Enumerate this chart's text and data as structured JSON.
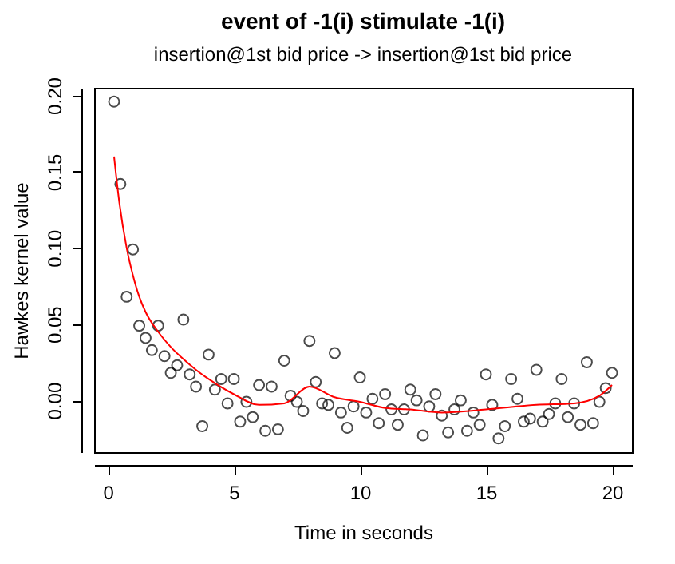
{
  "chart_data": {
    "type": "scatter",
    "title": "event of -1(i) stimulate -1(i)",
    "subtitle": "insertion@1st bid price -> insertion@1st bid price",
    "xlabel": "Time in seconds",
    "ylabel": "Hawkes kernel value",
    "xlim": [
      -0.54,
      20.79
    ],
    "ylim": [
      -0.034,
      0.205
    ],
    "xticks": [
      0,
      5,
      10,
      15,
      20
    ],
    "yticks": [
      {
        "value": 0,
        "label": "0.00"
      },
      0.05,
      {
        "value": 0.1,
        "label": "0.10"
      },
      0.15,
      {
        "value": 0.2,
        "label": "0.20"
      }
    ],
    "grid": false,
    "series": [
      {
        "color": "#000000",
        "marker": "circle",
        "x": [
          0.25,
          0.5,
          0.75,
          1,
          1.25,
          1.5,
          1.75,
          2,
          2.25,
          2.5,
          2.75,
          3,
          3.25,
          3.5,
          3.75,
          4,
          4.25,
          4.5,
          4.75,
          5,
          5.25,
          5.5,
          5.75,
          6,
          6.25,
          6.5,
          6.75,
          7,
          7.25,
          7.5,
          7.75,
          8,
          8.25,
          8.5,
          8.75,
          9,
          9.25,
          9.5,
          9.75,
          10,
          10.25,
          10.5,
          10.75,
          11,
          11.25,
          11.5,
          11.75,
          12,
          12.25,
          12.5,
          12.75,
          13,
          13.25,
          13.5,
          13.75,
          14,
          14.25,
          14.5,
          14.75,
          15,
          15.25,
          15.5,
          15.75,
          16,
          16.25,
          16.5,
          16.75,
          17,
          17.25,
          17.5,
          17.75,
          18,
          18.25,
          18.5,
          18.75,
          19,
          19.25,
          19.5,
          19.75,
          20
        ],
        "values": [
          0.196,
          0.142,
          0.068,
          0.099,
          0.049,
          0.041,
          0.033,
          0.049,
          0.029,
          0.018,
          0.023,
          0.053,
          0.017,
          0.009,
          -0.017,
          0.03,
          0.007,
          0.014,
          -0.002,
          0.014,
          -0.014,
          -0.001,
          -0.011,
          0.01,
          -0.02,
          0.009,
          -0.019,
          0.026,
          0.003,
          -0.001,
          -0.007,
          0.039,
          0.012,
          -0.002,
          -0.003,
          0.031,
          -0.008,
          -0.018,
          -0.004,
          0.015,
          -0.008,
          0.001,
          -0.015,
          0.004,
          -0.006,
          -0.016,
          -0.006,
          0.007,
          0,
          -0.023,
          -0.004,
          0.004,
          -0.01,
          -0.021,
          -0.006,
          0,
          -0.02,
          -0.008,
          -0.016,
          0.017,
          -0.003,
          -0.025,
          -0.017,
          0.014,
          0.001,
          -0.014,
          -0.012,
          0.02,
          -0.014,
          -0.009,
          -0.002,
          0.014,
          -0.011,
          -0.002,
          -0.016,
          0.025,
          -0.015,
          -0.001,
          0.008,
          0.018
        ]
      },
      {
        "type": "line",
        "color": "#ff0000",
        "x": [
          0.25,
          0.45,
          0.75,
          1,
          1.25,
          1.5,
          2,
          2.5,
          3,
          3.5,
          4,
          5,
          6,
          7,
          8,
          9,
          10,
          11,
          12,
          13.25,
          15,
          17,
          18.5,
          19.5,
          20
        ],
        "values": [
          0.16,
          0.131,
          0.1,
          0.082,
          0.068,
          0.058,
          0.045,
          0.035,
          0.027,
          0.02,
          0.014,
          0.004,
          -0.003,
          -0.002,
          0.009,
          0.002,
          -0.001,
          -0.005,
          -0.006,
          -0.008,
          -0.006,
          -0.003,
          -0.002,
          0.003,
          0.01
        ]
      }
    ]
  }
}
